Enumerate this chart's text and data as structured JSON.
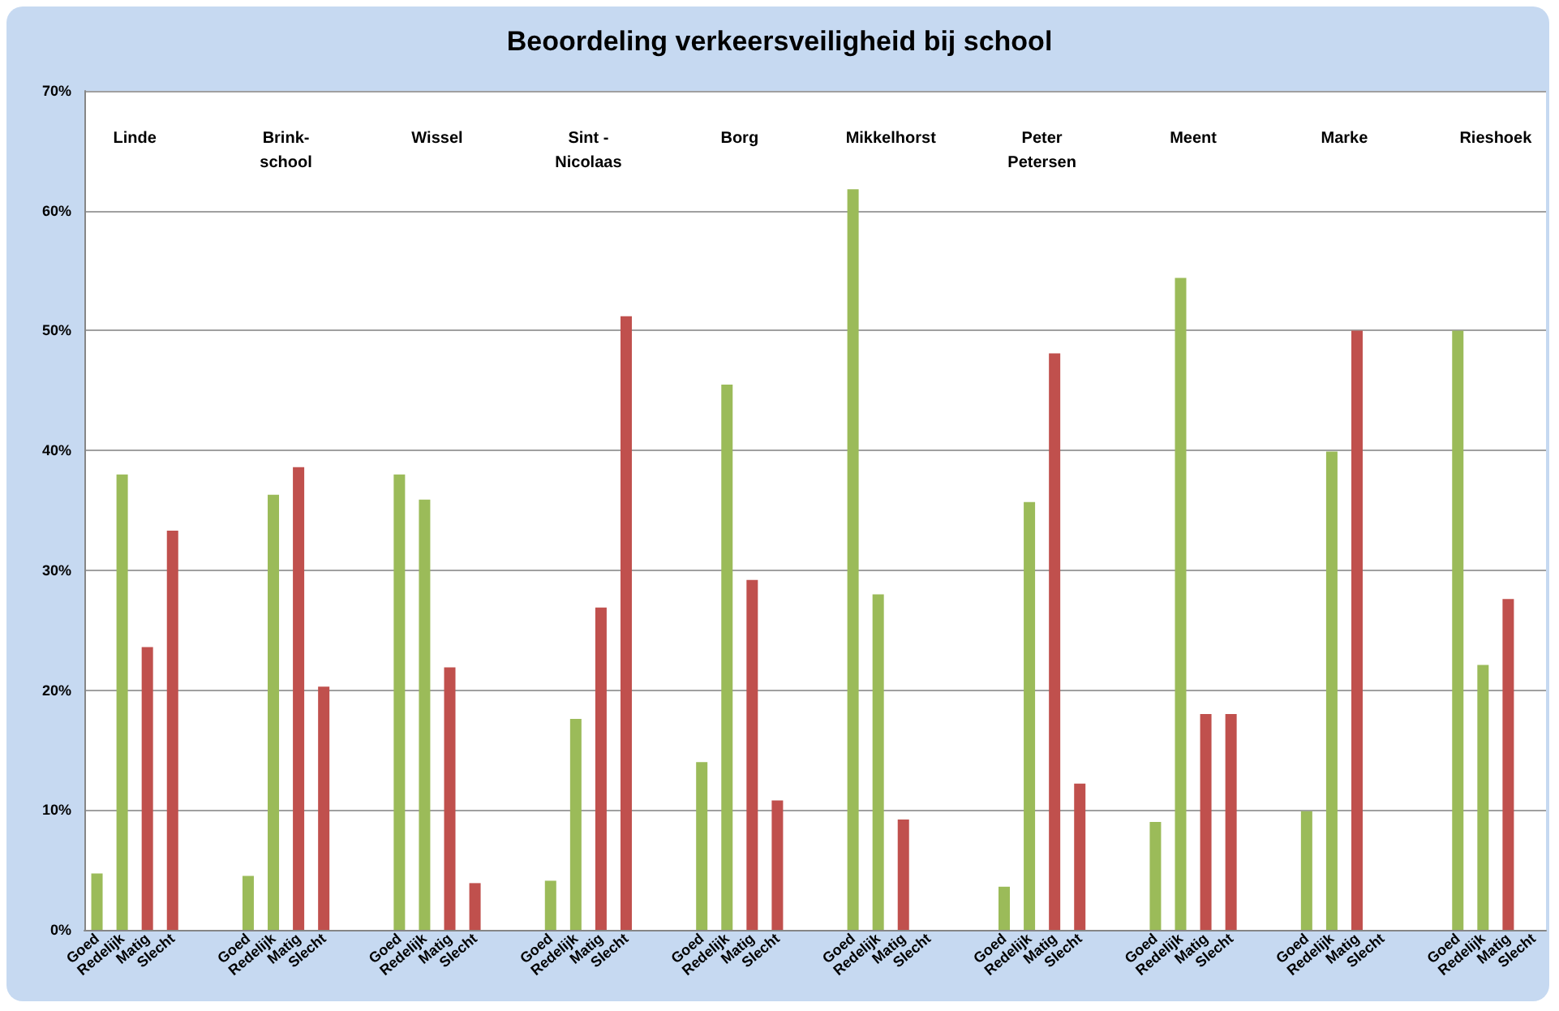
{
  "chart_data": {
    "type": "bar",
    "title": "Beoordeling verkeersveiligheid bij school",
    "categories": [
      "Goed",
      "Redelijk",
      "Matig",
      "Slecht",
      null,
      null,
      "Goed",
      "Redelijk",
      "Matig",
      "Slecht",
      null,
      null,
      "Goed",
      "Redelijk",
      "Matig",
      "Slecht",
      null,
      null,
      "Goed",
      "Redelijk",
      "Matig",
      "Slecht",
      null,
      null,
      "Goed",
      "Redelijk",
      "Matig",
      "Slecht",
      null,
      null,
      "Goed",
      "Redelijk",
      "Matig",
      "Slecht",
      null,
      null,
      "Goed",
      "Redelijk",
      "Matig",
      "Slecht",
      null,
      null,
      "Goed",
      "Redelijk",
      "Matig",
      "Slecht",
      null,
      null,
      "Goed",
      "Redelijk",
      "Matig",
      "Slecht",
      null,
      null,
      "Goed",
      "Redelijk",
      "Matig",
      "Slecht"
    ],
    "values": [
      4.7,
      38.0,
      23.6,
      33.3,
      null,
      null,
      4.5,
      36.3,
      38.6,
      20.3,
      null,
      null,
      38.0,
      35.9,
      21.9,
      3.9,
      null,
      null,
      4.1,
      17.6,
      26.9,
      51.2,
      null,
      null,
      14.0,
      45.5,
      29.2,
      10.8,
      null,
      null,
      61.8,
      28.0,
      9.2,
      0,
      null,
      null,
      3.6,
      35.7,
      48.1,
      12.2,
      null,
      null,
      9.0,
      54.4,
      18.0,
      18.0,
      null,
      null,
      9.9,
      39.9,
      50,
      0,
      null,
      null,
      50,
      22.1,
      27.6,
      0
    ],
    "colors": [
      "#9bbb59",
      "#9bbb59",
      "#c0504d",
      "#c0504d",
      null,
      null,
      "#9bbb59",
      "#9bbb59",
      "#c0504d",
      "#c0504d",
      null,
      null,
      "#9bbb59",
      "#9bbb59",
      "#c0504d",
      "#c0504d",
      null,
      null,
      "#9bbb59",
      "#9bbb59",
      "#c0504d",
      "#c0504d",
      null,
      null,
      "#9bbb59",
      "#9bbb59",
      "#c0504d",
      "#c0504d",
      null,
      null,
      "#9bbb59",
      "#9bbb59",
      "#c0504d",
      "#c0504d",
      null,
      null,
      "#9bbb59",
      "#9bbb59",
      "#c0504d",
      "#c0504d",
      null,
      null,
      "#9bbb59",
      "#9bbb59",
      "#c0504d",
      "#c0504d",
      null,
      null,
      "#9bbb59",
      "#9bbb59",
      "#c0504d",
      "#c0504d",
      null,
      null,
      "#9bbb59",
      "#9bbb59",
      "#c0504d",
      "#c0504d"
    ],
    "annotations": [
      "Linde",
      "Brink-\nschool",
      "Wissel",
      "Sint -\nNicolaas",
      "Borg",
      "Mikkelhorst",
      "Peter\nPetersen",
      "Meent",
      "Marke",
      "Rieshoek"
    ],
    "ylim": [
      0,
      70
    ],
    "yticks": [
      {
        "value": 0,
        "label": "0%"
      },
      {
        "value": 10,
        "label": "10%"
      },
      {
        "value": 20,
        "label": "20%"
      },
      {
        "value": 30,
        "label": "30%"
      },
      {
        "value": 40,
        "label": "40%"
      },
      {
        "value": 50,
        "label": "50%"
      },
      {
        "value": 60,
        "label": "60%"
      },
      {
        "value": 70,
        "label": "70%"
      }
    ],
    "grid": "y"
  }
}
